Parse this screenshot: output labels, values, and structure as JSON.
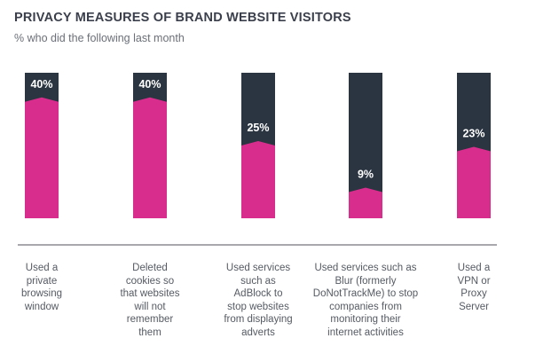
{
  "title": "PRIVACY MEASURES OF BRAND WEBSITE VISITORS",
  "subtitle": "% who did the following last month",
  "colors": {
    "track": "#2a3541",
    "fill": "#d82d8c",
    "axis": "#a8a8ad",
    "value_text": "#ffffff"
  },
  "chart_data": {
    "type": "bar",
    "title": "PRIVACY MEASURES OF BRAND WEBSITE VISITORS",
    "subtitle": "% who did the following last month",
    "categories": [
      "Used a private browsing window",
      "Deleted cookies so that websites will not remember them",
      "Used services such as AdBlock to stop websites from displaying adverts",
      "Used services such as Blur (formerly DoNotTrackMe) to stop companies from monitoring their internet activities",
      "Used a VPN or Proxy Server"
    ],
    "category_lines": [
      [
        "Used a",
        "private",
        "browsing",
        "window"
      ],
      [
        "Deleted",
        "cookies so",
        "that websites",
        "will not",
        "remember",
        "them"
      ],
      [
        "Used services",
        "such as",
        "AdBlock to",
        "stop websites",
        "from displaying",
        "adverts"
      ],
      [
        "Used services such as",
        "Blur (formerly",
        "DoNotTrackMe) to stop",
        "companies from",
        "monitoring their",
        "internet activities"
      ],
      [
        "Used a",
        "VPN or",
        "Proxy",
        "Server"
      ]
    ],
    "values": [
      40,
      40,
      25,
      9,
      23
    ],
    "data_labels": [
      "40%",
      "40%",
      "25%",
      "9%",
      "23%"
    ],
    "ylim": [
      0,
      50
    ],
    "grid": false
  }
}
